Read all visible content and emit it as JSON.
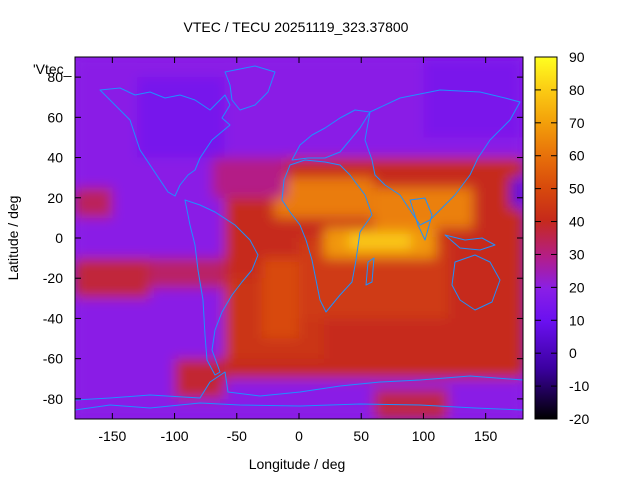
{
  "chart_data": {
    "type": "heatmap",
    "title": "VTEC / TECU 20251119_323.37800",
    "xlabel": "Longitude / deg",
    "ylabel": "Latitude / deg",
    "xlim": [
      -180,
      180
    ],
    "ylim": [
      -90,
      90
    ],
    "x_ticks": [
      -150,
      -100,
      -50,
      0,
      50,
      100,
      150
    ],
    "y_ticks": [
      -80,
      -60,
      -40,
      -20,
      0,
      20,
      40,
      60,
      80
    ],
    "colorbar": {
      "min": -20,
      "max": 90,
      "ticks": [
        -20,
        -10,
        0,
        10,
        20,
        30,
        40,
        50,
        60,
        70,
        80,
        90
      ],
      "palette": "black-purple-red-orange-yellow"
    },
    "legend_label": "'Vtec_",
    "overlay": "coastlines",
    "color_map": {
      "background": "#8a1fe6",
      "stops": [
        {
          "v": -20,
          "c": "#000000"
        },
        {
          "v": -5,
          "c": "#3b00a0"
        },
        {
          "v": 10,
          "c": "#6a10f0"
        },
        {
          "v": 20,
          "c": "#8a1fe6"
        },
        {
          "v": 30,
          "c": "#b41e86"
        },
        {
          "v": 40,
          "c": "#c62a1a"
        },
        {
          "v": 50,
          "c": "#d84a0c"
        },
        {
          "v": 60,
          "c": "#e8720a"
        },
        {
          "v": 70,
          "c": "#f3a00a"
        },
        {
          "v": 80,
          "c": "#fbcc14"
        },
        {
          "v": 90,
          "c": "#ffff20"
        }
      ]
    },
    "regions": [
      {
        "lon": [
          -180,
          180
        ],
        "lat": [
          -90,
          90
        ],
        "v": 20
      },
      {
        "lon": [
          -180,
          -150
        ],
        "lat": [
          10,
          25
        ],
        "v": 34
      },
      {
        "lon": [
          -180,
          -120
        ],
        "lat": [
          -30,
          -10
        ],
        "v": 37
      },
      {
        "lon": [
          -120,
          -60
        ],
        "lat": [
          -25,
          -10
        ],
        "v": 33
      },
      {
        "lon": [
          -60,
          180
        ],
        "lat": [
          -70,
          40
        ],
        "v": 40
      },
      {
        "lon": [
          -100,
          -60
        ],
        "lat": [
          -80,
          -60
        ],
        "v": 38
      },
      {
        "lon": [
          -60,
          20
        ],
        "lat": [
          -60,
          -20
        ],
        "v": 43
      },
      {
        "lon": [
          0,
          120
        ],
        "lat": [
          -40,
          0
        ],
        "v": 45
      },
      {
        "lon": [
          -20,
          60
        ],
        "lat": [
          10,
          30
        ],
        "v": 62
      },
      {
        "lon": [
          60,
          140
        ],
        "lat": [
          5,
          25
        ],
        "v": 63
      },
      {
        "lon": [
          20,
          110
        ],
        "lat": [
          -10,
          5
        ],
        "v": 68
      },
      {
        "lon": [
          40,
          90
        ],
        "lat": [
          -5,
          2
        ],
        "v": 80
      },
      {
        "lon": [
          -30,
          0
        ],
        "lat": [
          -50,
          -10
        ],
        "v": 50
      },
      {
        "lon": [
          -70,
          -10
        ],
        "lat": [
          20,
          40
        ],
        "v": 30
      },
      {
        "lon": [
          -130,
          -60
        ],
        "lat": [
          40,
          80
        ],
        "v": 14
      },
      {
        "lon": [
          100,
          180
        ],
        "lat": [
          50,
          90
        ],
        "v": 15
      },
      {
        "lon": [
          170,
          180
        ],
        "lat": [
          15,
          30
        ],
        "v": 5
      },
      {
        "lon": [
          60,
          120
        ],
        "lat": [
          -90,
          -75
        ],
        "v": 36
      }
    ]
  }
}
